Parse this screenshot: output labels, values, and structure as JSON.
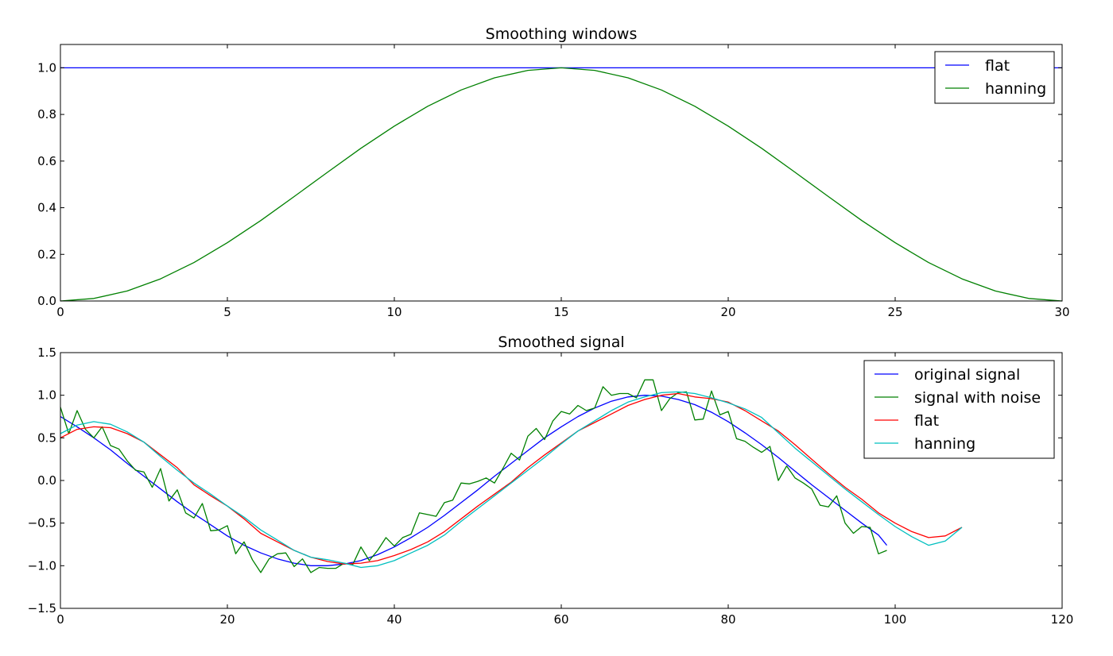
{
  "chart_data": [
    {
      "type": "line",
      "title": "Smoothing windows",
      "xlabel": "",
      "ylabel": "",
      "xlim": [
        0,
        30
      ],
      "ylim": [
        0.0,
        1.1
      ],
      "xticks": [
        "0",
        "5",
        "10",
        "15",
        "20",
        "25",
        "30"
      ],
      "yticks": [
        "0.0",
        "0.2",
        "0.4",
        "0.6",
        "0.8",
        "1.0"
      ],
      "grid": false,
      "legend_position": "top-right",
      "series": [
        {
          "name": "flat",
          "color": "#0000ff",
          "x": [
            0,
            30
          ],
          "y": [
            1.0,
            1.0
          ]
        },
        {
          "name": "hanning",
          "color": "#008000",
          "x": [
            0,
            1,
            2,
            3,
            4,
            5,
            6,
            7,
            8,
            9,
            10,
            11,
            12,
            13,
            14,
            15,
            16,
            17,
            18,
            19,
            20,
            21,
            22,
            23,
            24,
            25,
            26,
            27,
            28,
            29,
            30
          ],
          "y": [
            0.0,
            0.011,
            0.043,
            0.095,
            0.165,
            0.25,
            0.345,
            0.448,
            0.552,
            0.655,
            0.75,
            0.835,
            0.905,
            0.957,
            0.989,
            1.0,
            0.989,
            0.957,
            0.905,
            0.835,
            0.75,
            0.655,
            0.552,
            0.448,
            0.345,
            0.25,
            0.165,
            0.095,
            0.043,
            0.011,
            0.0
          ]
        }
      ]
    },
    {
      "type": "line",
      "title": "Smoothed signal",
      "xlabel": "",
      "ylabel": "",
      "xlim": [
        0,
        120
      ],
      "ylim": [
        -1.5,
        1.5
      ],
      "xticks": [
        "0",
        "20",
        "40",
        "60",
        "80",
        "100",
        "120"
      ],
      "yticks": [
        "−1.5",
        "−1.0",
        "−0.5",
        "0.0",
        "0.5",
        "1.0",
        "1.5"
      ],
      "grid": false,
      "legend_position": "top-right",
      "series": [
        {
          "name": "original signal",
          "color": "#0000ff",
          "x": [
            0,
            2,
            4,
            6,
            8,
            10,
            12,
            14,
            16,
            18,
            20,
            22,
            24,
            26,
            28,
            30,
            32,
            34,
            36,
            38,
            40,
            42,
            44,
            46,
            48,
            50,
            52,
            54,
            56,
            58,
            60,
            62,
            64,
            66,
            68,
            70,
            72,
            74,
            76,
            78,
            80,
            82,
            84,
            86,
            88,
            90,
            92,
            94,
            96,
            98,
            99
          ],
          "y": [
            0.75,
            0.63,
            0.5,
            0.36,
            0.2,
            0.05,
            -0.1,
            -0.25,
            -0.39,
            -0.52,
            -0.65,
            -0.76,
            -0.85,
            -0.92,
            -0.97,
            -1.0,
            -1.0,
            -0.98,
            -0.94,
            -0.87,
            -0.78,
            -0.67,
            -0.55,
            -0.41,
            -0.26,
            -0.11,
            0.05,
            0.2,
            0.35,
            0.5,
            0.63,
            0.75,
            0.85,
            0.93,
            0.98,
            1.0,
            0.99,
            0.95,
            0.89,
            0.8,
            0.69,
            0.56,
            0.42,
            0.27,
            0.11,
            -0.05,
            -0.2,
            -0.35,
            -0.5,
            -0.64,
            -0.76
          ]
        },
        {
          "name": "signal with noise",
          "color": "#008000",
          "x": [
            0,
            1,
            2,
            3,
            4,
            5,
            6,
            7,
            8,
            9,
            10,
            11,
            12,
            13,
            14,
            15,
            16,
            17,
            18,
            19,
            20,
            21,
            22,
            23,
            24,
            25,
            26,
            27,
            28,
            29,
            30,
            31,
            32,
            33,
            34,
            35,
            36,
            37,
            38,
            39,
            40,
            41,
            42,
            43,
            44,
            45,
            46,
            47,
            48,
            49,
            50,
            51,
            52,
            53,
            54,
            55,
            56,
            57,
            58,
            59,
            60,
            61,
            62,
            63,
            64,
            65,
            66,
            67,
            68,
            69,
            70,
            71,
            72,
            73,
            74,
            75,
            76,
            77,
            78,
            79,
            80,
            81,
            82,
            83,
            84,
            85,
            86,
            87,
            88,
            89,
            90,
            91,
            92,
            93,
            94,
            95,
            96,
            97,
            98,
            99
          ],
          "y": [
            0.86,
            0.55,
            0.82,
            0.6,
            0.5,
            0.63,
            0.41,
            0.37,
            0.23,
            0.12,
            0.1,
            -0.08,
            0.14,
            -0.24,
            -0.11,
            -0.38,
            -0.44,
            -0.27,
            -0.59,
            -0.58,
            -0.53,
            -0.86,
            -0.72,
            -0.93,
            -1.08,
            -0.92,
            -0.86,
            -0.85,
            -1.01,
            -0.92,
            -1.08,
            -1.02,
            -1.03,
            -1.03,
            -0.97,
            -0.99,
            -0.78,
            -0.94,
            -0.82,
            -0.67,
            -0.77,
            -0.67,
            -0.63,
            -0.38,
            -0.4,
            -0.42,
            -0.26,
            -0.23,
            -0.03,
            -0.04,
            -0.01,
            0.03,
            -0.03,
            0.14,
            0.32,
            0.24,
            0.52,
            0.61,
            0.48,
            0.7,
            0.81,
            0.78,
            0.88,
            0.82,
            0.85,
            1.1,
            1.0,
            1.02,
            1.02,
            0.97,
            1.18,
            1.18,
            0.82,
            0.96,
            1.03,
            1.04,
            0.71,
            0.72,
            1.05,
            0.77,
            0.81,
            0.49,
            0.46,
            0.39,
            0.33,
            0.4,
            0.0,
            0.17,
            0.03,
            -0.03,
            -0.1,
            -0.29,
            -0.31,
            -0.18,
            -0.5,
            -0.62,
            -0.54,
            -0.55,
            -0.86,
            -0.82
          ]
        },
        {
          "name": "flat",
          "color": "#ff0000",
          "x": [
            0,
            2,
            4,
            6,
            8,
            10,
            12,
            14,
            16,
            18,
            20,
            22,
            24,
            26,
            28,
            30,
            32,
            34,
            36,
            38,
            40,
            42,
            44,
            46,
            48,
            50,
            52,
            54,
            56,
            58,
            60,
            62,
            64,
            66,
            68,
            70,
            72,
            74,
            76,
            78,
            80,
            82,
            84,
            86,
            88,
            90,
            92,
            94,
            96,
            98,
            100,
            102,
            104,
            106,
            108
          ],
          "y": [
            0.5,
            0.6,
            0.63,
            0.62,
            0.55,
            0.45,
            0.3,
            0.15,
            -0.05,
            -0.18,
            -0.3,
            -0.45,
            -0.62,
            -0.72,
            -0.82,
            -0.9,
            -0.95,
            -0.98,
            -0.97,
            -0.94,
            -0.88,
            -0.81,
            -0.72,
            -0.6,
            -0.45,
            -0.3,
            -0.16,
            -0.02,
            0.15,
            0.3,
            0.44,
            0.58,
            0.68,
            0.78,
            0.88,
            0.95,
            1.0,
            1.02,
            0.98,
            0.96,
            0.92,
            0.82,
            0.7,
            0.58,
            0.42,
            0.25,
            0.08,
            -0.08,
            -0.22,
            -0.38,
            -0.5,
            -0.6,
            -0.67,
            -0.65,
            -0.55
          ]
        },
        {
          "name": "hanning",
          "color": "#00bfbf",
          "x": [
            0,
            2,
            4,
            6,
            8,
            10,
            12,
            14,
            16,
            18,
            20,
            22,
            24,
            26,
            28,
            30,
            32,
            34,
            36,
            38,
            40,
            42,
            44,
            46,
            48,
            50,
            52,
            54,
            56,
            58,
            60,
            62,
            64,
            66,
            68,
            70,
            72,
            74,
            76,
            78,
            80,
            82,
            84,
            86,
            88,
            90,
            92,
            94,
            96,
            98,
            100,
            102,
            104,
            106,
            108
          ],
          "y": [
            0.55,
            0.65,
            0.69,
            0.66,
            0.57,
            0.45,
            0.28,
            0.12,
            -0.03,
            -0.16,
            -0.3,
            -0.43,
            -0.58,
            -0.7,
            -0.82,
            -0.9,
            -0.93,
            -0.97,
            -1.02,
            -1.0,
            -0.94,
            -0.85,
            -0.76,
            -0.64,
            -0.48,
            -0.33,
            -0.18,
            -0.03,
            0.12,
            0.27,
            0.43,
            0.58,
            0.7,
            0.82,
            0.92,
            0.98,
            1.03,
            1.04,
            1.02,
            0.97,
            0.91,
            0.84,
            0.74,
            0.56,
            0.38,
            0.22,
            0.06,
            -0.1,
            -0.25,
            -0.4,
            -0.54,
            -0.66,
            -0.76,
            -0.71,
            -0.55
          ]
        }
      ]
    }
  ]
}
